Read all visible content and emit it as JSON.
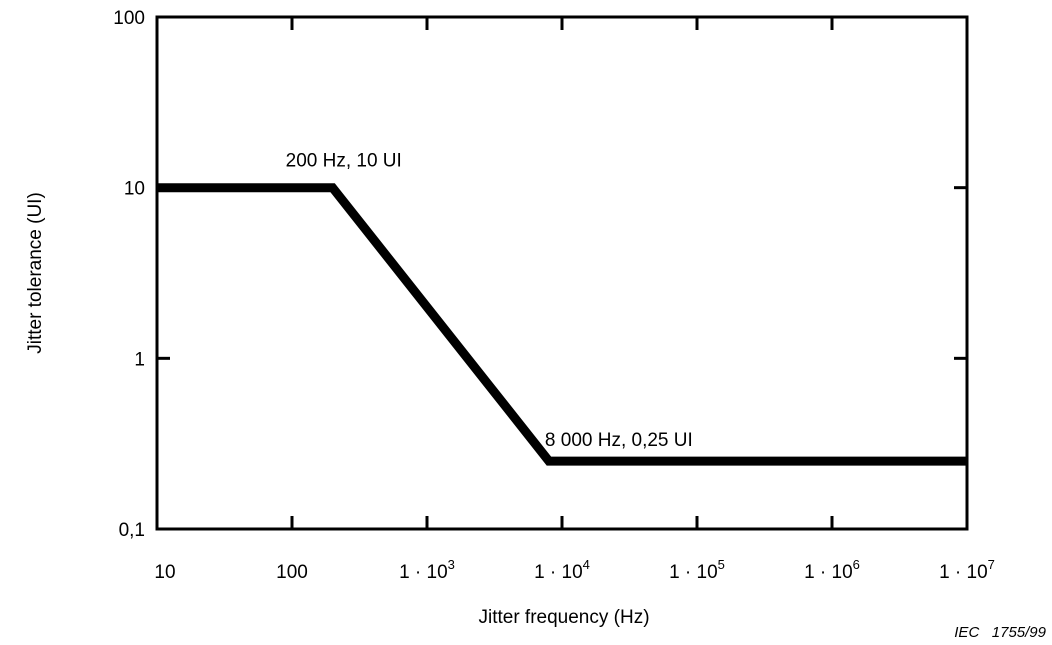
{
  "chart_data": {
    "type": "line",
    "xlabel": "Jitter frequency (Hz)",
    "ylabel": "Jitter tolerance (UI)",
    "x_scale": "log",
    "y_scale": "log",
    "xlim": [
      10,
      10000000
    ],
    "ylim": [
      0.1,
      100
    ],
    "grid": false,
    "x_ticks": [
      {
        "value": 10,
        "label": "10"
      },
      {
        "value": 100,
        "label": "100"
      },
      {
        "value": 1000,
        "base": "1 · 10",
        "exp": "3"
      },
      {
        "value": 10000,
        "base": "1 · 10",
        "exp": "4"
      },
      {
        "value": 100000,
        "base": "1 · 10",
        "exp": "5"
      },
      {
        "value": 1000000,
        "base": "1 · 10",
        "exp": "6"
      },
      {
        "value": 10000000,
        "base": "1 · 10",
        "exp": "7"
      }
    ],
    "y_ticks": [
      {
        "value": 0.1,
        "label": "0,1"
      },
      {
        "value": 1,
        "label": "1"
      },
      {
        "value": 10,
        "label": "10"
      },
      {
        "value": 100,
        "label": "100"
      }
    ],
    "series": [
      {
        "x": [
          10,
          200,
          8000,
          10000000
        ],
        "y": [
          10,
          10,
          0.25,
          0.25
        ]
      }
    ],
    "annotations": [
      {
        "text": "200 Hz, 10 UI",
        "x": 200,
        "y": 10
      },
      {
        "text": "8 000 Hz, 0,25 UI",
        "x": 8000,
        "y": 0.25
      }
    ]
  },
  "caption": "IEC   1755/99"
}
